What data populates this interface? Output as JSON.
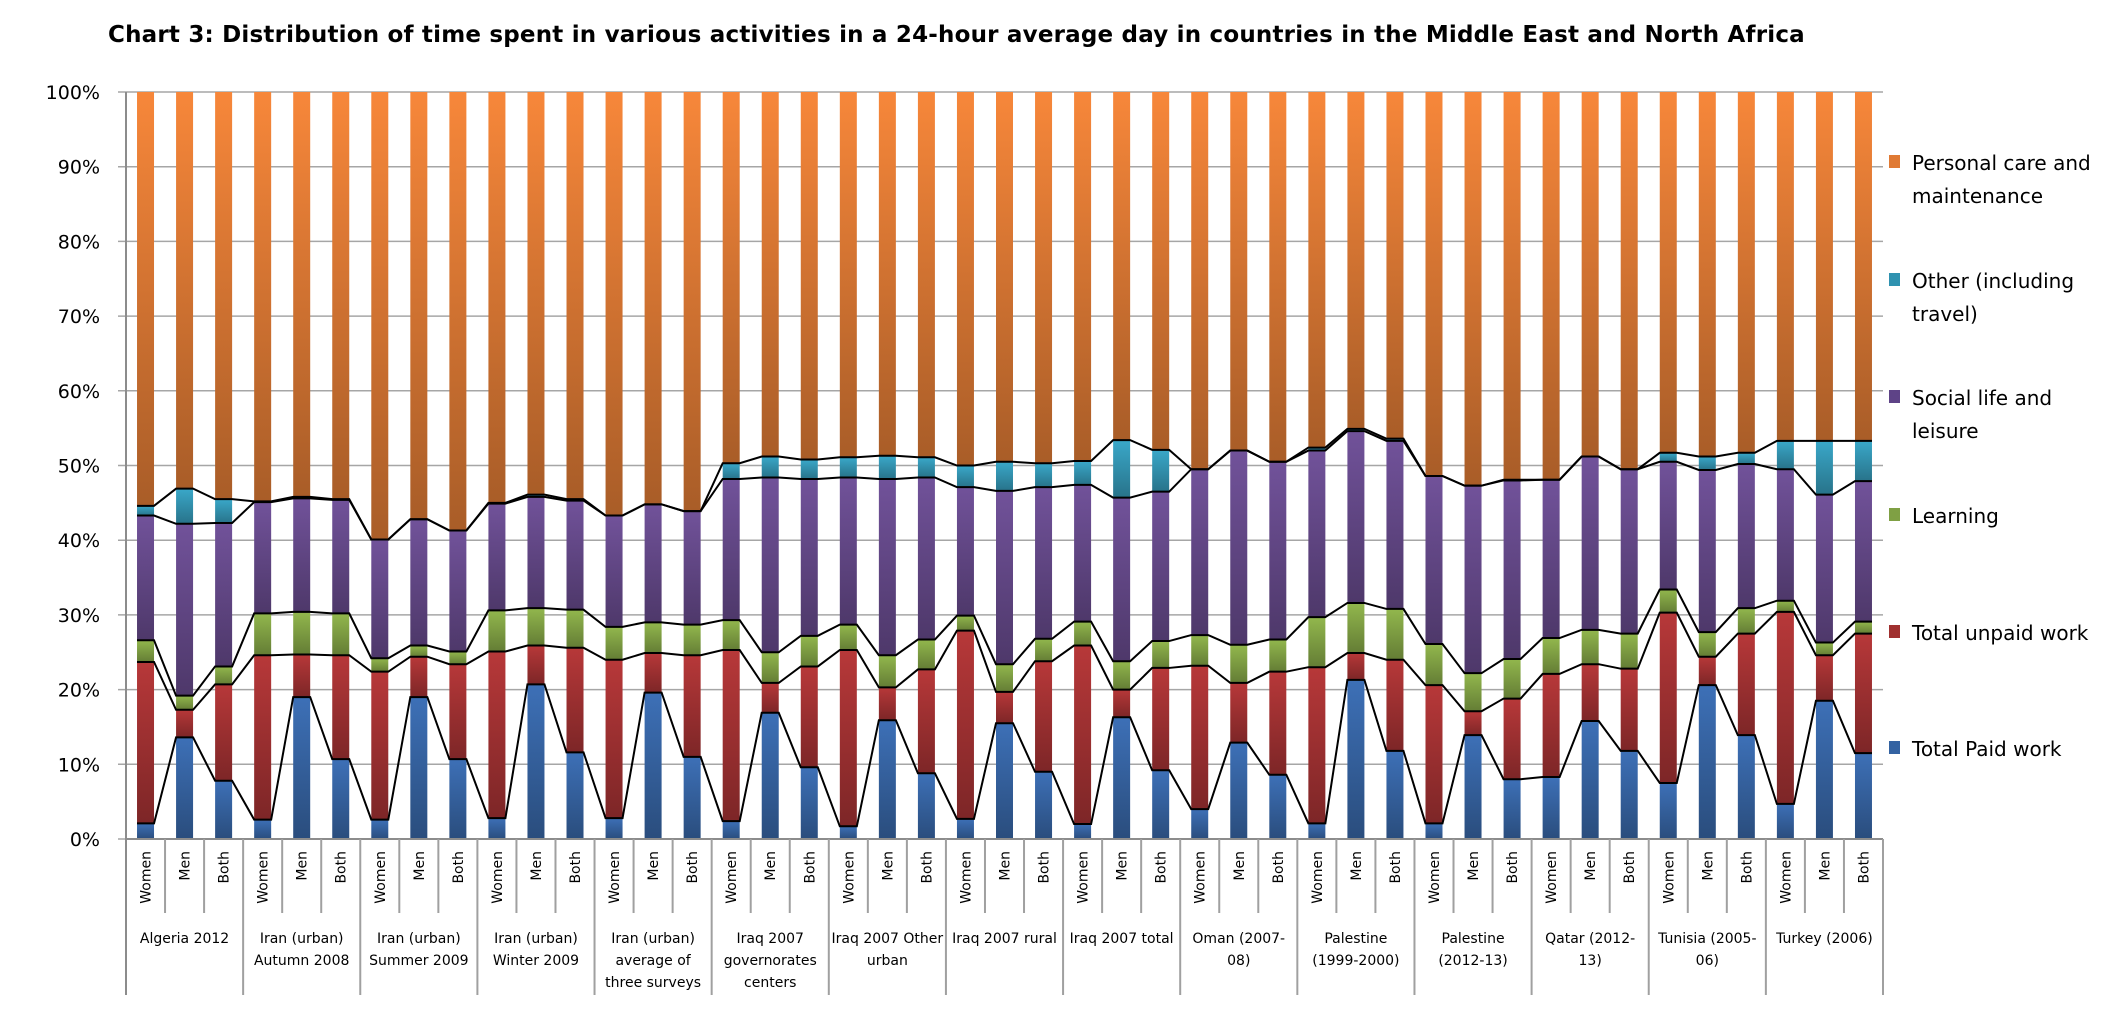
{
  "chart_data": {
    "type": "bar",
    "stacked": "percent",
    "title": "Chart 3: Distribution of time spent in various activities in a 24-hour average day in countries in the Middle East and North Africa",
    "xlabel": "",
    "ylabel": "",
    "ylim": [
      0,
      100
    ],
    "yticks": [
      "0%",
      "10%",
      "20%",
      "30%",
      "40%",
      "50%",
      "60%",
      "70%",
      "80%",
      "90%",
      "100%"
    ],
    "grid": true,
    "legend_position": "right",
    "subcategories": [
      "Women",
      "Men",
      "Both"
    ],
    "groups": [
      "Algeria 2012",
      "Iran (urban) Autumn 2008",
      "Iran (urban) Summer 2009",
      "Iran (urban) Winter 2009",
      "Iran (urban) average of three surveys",
      "Iraq 2007 governorates centers",
      "Iraq 2007 Other urban",
      "Iraq 2007 rural",
      "Iraq 2007 total",
      "Oman (2007-08)",
      "Palestine (1999-2000)",
      "Palestine (2012-13)",
      "Qatar (2012-13)",
      "Tunisia (2005-06)",
      "Turkey (2006)"
    ],
    "series": [
      {
        "name": "Total Paid work",
        "color": "#3A6BAE",
        "values": [
          2.1,
          13.6,
          7.8,
          2.6,
          19.0,
          10.7,
          2.6,
          19.0,
          10.7,
          2.8,
          20.7,
          11.6,
          2.8,
          19.6,
          11.0,
          2.4,
          16.9,
          9.6,
          1.7,
          15.9,
          8.8,
          2.7,
          15.5,
          9.0,
          2.0,
          16.3,
          9.2,
          4.0,
          12.9,
          8.6,
          2.1,
          21.3,
          11.8,
          2.1,
          13.9,
          8.0,
          8.3,
          15.8,
          11.8,
          7.5,
          20.6,
          13.9,
          4.7,
          18.5,
          11.5
        ]
      },
      {
        "name": "Total unpaid work",
        "color": "#AE3536",
        "values": [
          21.6,
          3.7,
          12.9,
          22.0,
          5.7,
          13.9,
          19.8,
          5.4,
          12.7,
          22.3,
          5.2,
          14.0,
          21.2,
          5.3,
          13.6,
          22.9,
          4.0,
          13.5,
          23.6,
          4.4,
          13.9,
          25.2,
          4.2,
          14.8,
          23.9,
          3.7,
          13.7,
          19.2,
          8.0,
          13.8,
          20.9,
          3.6,
          12.2,
          18.5,
          3.2,
          10.8,
          13.8,
          7.6,
          11.0,
          22.8,
          3.8,
          13.6,
          25.7,
          6.1,
          16.0
        ]
      },
      {
        "name": "Learning",
        "color": "#8BAE49",
        "values": [
          2.9,
          1.9,
          2.4,
          5.6,
          5.7,
          5.6,
          1.8,
          1.5,
          1.7,
          5.5,
          5.0,
          5.1,
          4.4,
          4.1,
          4.1,
          4.0,
          4.1,
          4.1,
          3.4,
          4.3,
          4.0,
          2.0,
          3.7,
          3.0,
          3.2,
          3.8,
          3.6,
          4.1,
          5.1,
          4.3,
          6.7,
          6.7,
          6.8,
          5.5,
          5.1,
          5.3,
          4.8,
          4.6,
          4.7,
          3.1,
          3.3,
          3.4,
          1.5,
          1.7,
          1.6
        ]
      },
      {
        "name": "Social life and leisure",
        "color": "#6C4E93",
        "values": [
          16.7,
          23.0,
          19.2,
          14.9,
          15.2,
          15.2,
          15.9,
          16.9,
          16.2,
          14.3,
          14.9,
          14.6,
          14.9,
          15.8,
          15.2,
          18.9,
          23.4,
          21.0,
          19.7,
          23.6,
          21.7,
          17.2,
          23.2,
          20.3,
          18.3,
          21.9,
          20.0,
          22.2,
          26.0,
          23.8,
          22.3,
          23.0,
          22.5,
          22.5,
          25.1,
          23.9,
          21.2,
          23.2,
          22.0,
          17.1,
          21.7,
          19.3,
          17.6,
          19.8,
          18.8
        ]
      },
      {
        "name": "Other (including travel)",
        "color": "#37A0BF",
        "values": [
          1.3,
          4.7,
          3.2,
          0.1,
          0.2,
          0.1,
          0,
          0,
          0,
          0.1,
          0.3,
          0.2,
          0,
          0,
          0,
          2.1,
          2.8,
          2.6,
          2.7,
          3.1,
          2.7,
          2.9,
          3.9,
          3.2,
          3.2,
          7.7,
          5.6,
          0,
          0,
          0,
          0.4,
          0.3,
          0.3,
          0,
          0,
          0.1,
          0,
          0,
          0,
          1.2,
          1.8,
          1.5,
          3.8,
          7.2,
          5.4
        ]
      },
      {
        "name": "Personal care and maintenance",
        "color": "#EB8137",
        "values": [
          55.4,
          53.1,
          54.5,
          54.8,
          54.2,
          54.5,
          59.9,
          57.2,
          58.7,
          55.0,
          53.9,
          54.5,
          56.7,
          55.2,
          56.1,
          49.7,
          48.8,
          49.2,
          48.9,
          48.7,
          48.9,
          50.0,
          49.5,
          49.7,
          49.4,
          46.6,
          47.9,
          50.5,
          48.0,
          49.5,
          47.6,
          45.1,
          46.4,
          51.4,
          52.7,
          51.9,
          51.9,
          48.8,
          50.5,
          48.3,
          48.8,
          48.3,
          46.7,
          46.7,
          46.7
        ]
      }
    ],
    "legend": [
      "Personal care and maintenance",
      "Other (including travel)",
      "Social life and leisure",
      "Learning",
      "Total unpaid work",
      "Total Paid work"
    ]
  }
}
